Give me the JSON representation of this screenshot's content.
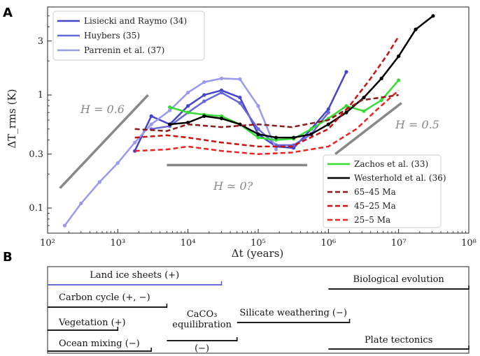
{
  "panel_a": {
    "letter": "A",
    "xlabel": "Δt (years)",
    "ylabel": "ΔT_rms (K)",
    "x_ticks": [
      "10²",
      "10³",
      "10⁴",
      "10⁵",
      "10⁶",
      "10⁷",
      "10⁸"
    ],
    "y_ticks": [
      "0.1",
      "0.3",
      "1",
      "3"
    ],
    "h_labels": [
      "H = 0.6",
      "H ≃ 0?",
      "H = 0.5"
    ]
  },
  "panel_b": {
    "letter": "B",
    "processes": [
      {
        "label": "Land ice sheets (+)",
        "start": 100,
        "end": 30000,
        "color": "#5555dd"
      },
      {
        "label": "Biological evolution",
        "start": 1000000,
        "end": 100000000,
        "color": "#000000"
      },
      {
        "label": "Carbon cycle (+, −)",
        "start": 100,
        "end": 5000,
        "color": "#000000"
      },
      {
        "label": "CaCO₃",
        "label2": "equilibration",
        "label3": "(−)",
        "start": 5000,
        "end": 50000,
        "color": "#000000"
      },
      {
        "label": "Silicate weathering (−)",
        "start": 50000,
        "end": 2000000,
        "color": "#000000"
      },
      {
        "label": "Vegetation (+)",
        "start": 100,
        "end": 1000,
        "color": "#000000"
      },
      {
        "label": "Ocean mixing (−)",
        "start": 100,
        "end": 3000,
        "color": "#000000"
      },
      {
        "label": "Plate tectonics",
        "start": 1000000,
        "end": 100000000,
        "color": "#000000"
      }
    ]
  },
  "chart_data": {
    "type": "line",
    "xlabel": "Δt (years)",
    "ylabel": "ΔT_rms (K)",
    "x_scale": "log",
    "y_scale": "log",
    "xlim": [
      100,
      100000000
    ],
    "ylim": [
      0.06,
      6
    ],
    "legend_top_left": [
      "Lisiecki and Raymo (34)",
      "Huybers (35)",
      "Parrenin et al. (37)"
    ],
    "legend_bottom_right": [
      "Zachos et al. (33)",
      "Westerhold et al. (36)",
      "65–45 Ma",
      "45–25 Ma",
      "25–5 Ma"
    ],
    "series": [
      {
        "name": "Lisiecki and Raymo (34)",
        "color": "#4444cc",
        "width": 2.5,
        "dash": "",
        "markers": true,
        "x": [
          1750,
          3000,
          5500,
          10000,
          17000,
          30000,
          55000,
          100000,
          180000,
          320000,
          570000,
          1000000,
          1800000
        ],
        "y": [
          0.32,
          0.65,
          0.55,
          0.8,
          1.0,
          1.1,
          0.95,
          0.45,
          0.35,
          0.34,
          0.5,
          0.75,
          1.6
        ]
      },
      {
        "name": "Huybers (35)",
        "color": "#6666dd",
        "width": 2.5,
        "dash": "",
        "markers": true,
        "x": [
          3000,
          5500,
          10000,
          17000,
          30000,
          55000,
          100000,
          180000,
          320000,
          570000,
          1000000
        ],
        "y": [
          0.5,
          0.53,
          0.7,
          0.88,
          1.05,
          0.85,
          0.5,
          0.36,
          0.36,
          0.45,
          0.7
        ]
      },
      {
        "name": "Parrenin et al. (37)",
        "color": "#9999ee",
        "width": 2.5,
        "dash": "",
        "markers": true,
        "x": [
          175,
          300,
          550,
          1000,
          1750,
          3000,
          5500,
          10000,
          17000,
          30000,
          55000,
          100000,
          180000
        ],
        "y": [
          0.07,
          0.11,
          0.17,
          0.25,
          0.38,
          0.55,
          0.73,
          1.05,
          1.3,
          1.4,
          1.38,
          0.8,
          0.33
        ]
      },
      {
        "name": "Zachos et al. (33)",
        "color": "#33dd33",
        "width": 2.5,
        "dash": "",
        "markers": true,
        "x": [
          5500,
          10000,
          17000,
          30000,
          55000,
          100000,
          180000,
          320000,
          570000,
          1000000,
          1800000,
          3200000,
          5700000,
          10000000
        ],
        "y": [
          0.78,
          0.7,
          0.67,
          0.65,
          0.55,
          0.42,
          0.4,
          0.41,
          0.5,
          0.62,
          0.8,
          0.72,
          0.9,
          1.35
        ]
      },
      {
        "name": "Westerhold et al. (36)",
        "color": "#000000",
        "width": 2.5,
        "dash": "",
        "markers": true,
        "x": [
          5500,
          10000,
          17000,
          30000,
          55000,
          100000,
          180000,
          320000,
          570000,
          1000000,
          1800000,
          3200000,
          5700000,
          10000000,
          17500000,
          31000000
        ],
        "y": [
          0.55,
          0.57,
          0.65,
          0.62,
          0.55,
          0.45,
          0.42,
          0.42,
          0.45,
          0.55,
          0.7,
          0.95,
          1.4,
          2.2,
          3.8,
          5.0
        ]
      },
      {
        "name": "65–45 Ma",
        "color": "#8b1a1a",
        "width": 2.5,
        "dash": "7,4",
        "markers": false,
        "x": [
          1750,
          5000,
          10000,
          30000,
          100000,
          300000,
          1000000,
          3000000,
          10000000
        ],
        "y": [
          0.5,
          0.48,
          0.55,
          0.52,
          0.55,
          0.52,
          0.6,
          0.9,
          1.0
        ]
      },
      {
        "name": "45–25 Ma",
        "color": "#cc1111",
        "width": 2.5,
        "dash": "7,4",
        "markers": false,
        "x": [
          1750,
          5000,
          10000,
          30000,
          100000,
          300000,
          1000000,
          2000000,
          4000000,
          7000000,
          10000000
        ],
        "y": [
          0.42,
          0.44,
          0.42,
          0.38,
          0.35,
          0.35,
          0.5,
          0.8,
          1.4,
          2.3,
          3.3
        ]
      },
      {
        "name": "25–5 Ma",
        "color": "#ee2222",
        "width": 2.5,
        "dash": "7,4",
        "markers": false,
        "x": [
          1750,
          5000,
          10000,
          30000,
          100000,
          300000,
          1000000,
          2500000,
          5000000,
          10000000
        ],
        "y": [
          0.32,
          0.33,
          0.35,
          0.32,
          0.3,
          0.31,
          0.35,
          0.5,
          0.75,
          1.1
        ]
      }
    ],
    "guide_lines": [
      {
        "label": "H = 0.6",
        "x": [
          150,
          2700
        ],
        "y": [
          0.15,
          1.0
        ]
      },
      {
        "label": "H ≃ 0?",
        "x": [
          5000,
          500000
        ],
        "y": [
          0.24,
          0.24
        ]
      },
      {
        "label": "H = 0.5",
        "x": [
          1250000,
          11000000
        ],
        "y": [
          0.3,
          0.85
        ]
      }
    ]
  }
}
